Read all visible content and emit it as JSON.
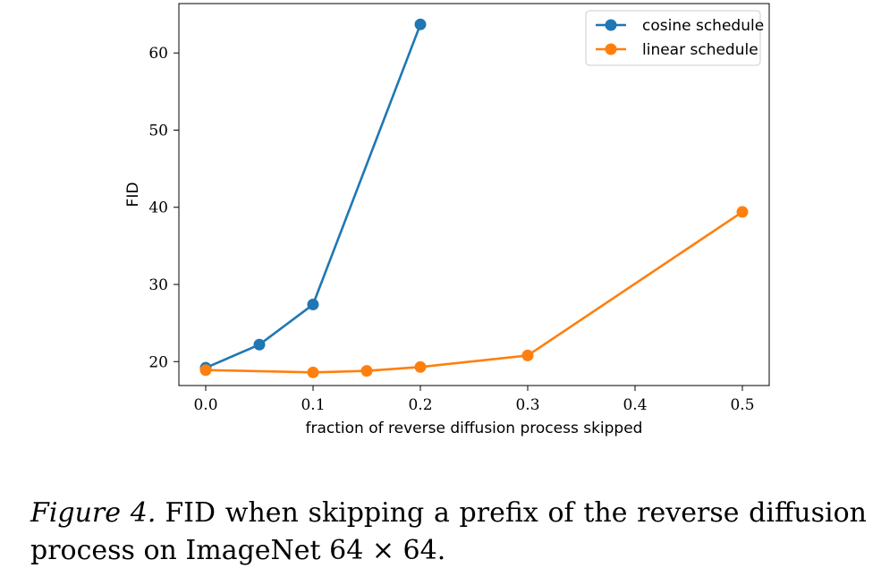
{
  "chart_data": {
    "type": "line",
    "xlabel": "fraction of reverse diffusion process skipped",
    "ylabel": "FID",
    "xlim": [
      -0.025,
      0.525
    ],
    "ylim": [
      16.9,
      66.4
    ],
    "xticks": [
      0.0,
      0.1,
      0.2,
      0.3,
      0.4,
      0.5
    ],
    "xtick_labels": [
      "0.0",
      "0.1",
      "0.2",
      "0.3",
      "0.4",
      "0.5"
    ],
    "yticks": [
      20,
      30,
      40,
      50,
      60
    ],
    "ytick_labels": [
      "20",
      "30",
      "40",
      "50",
      "60"
    ],
    "grid": false,
    "legend_position": "top-right",
    "series": [
      {
        "name": "cosine schedule",
        "color": "#1f77b4",
        "x": [
          0.0,
          0.05,
          0.1,
          0.2
        ],
        "y": [
          19.2,
          22.2,
          27.4,
          63.7
        ]
      },
      {
        "name": "linear schedule",
        "color": "#ff7f0e",
        "x": [
          0.0,
          0.1,
          0.15,
          0.2,
          0.3,
          0.5
        ],
        "y": [
          18.9,
          18.6,
          18.8,
          19.3,
          20.8,
          39.4
        ]
      }
    ]
  },
  "caption": {
    "label": "Figure 4.",
    "text": "FID when skipping a prefix of the reverse diffusion process on ImageNet 64 × 64."
  }
}
